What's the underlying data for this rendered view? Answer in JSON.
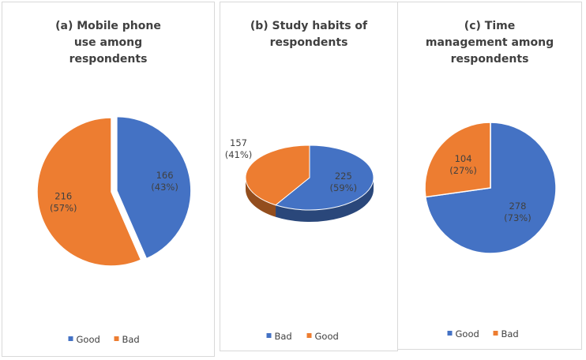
{
  "chart_data": [
    {
      "type": "pie",
      "title": "(a) Mobile phone use among respondents",
      "slices": [
        {
          "name": "Good",
          "value": 166,
          "label_value": "166",
          "label_pct": "(43%)",
          "color": "#4472C4"
        },
        {
          "name": "Bad",
          "value": 216,
          "label_value": "216",
          "label_pct": "(57%)",
          "color": "#ED7D31"
        }
      ],
      "legend": [
        "Good",
        "Bad"
      ],
      "legend_position": "bottom",
      "exploded": true
    },
    {
      "type": "pie",
      "title": "(b) Study habits of respondents",
      "slices": [
        {
          "name": "Bad",
          "value": 225,
          "label_value": "225",
          "label_pct": "(59%)",
          "color": "#4472C4"
        },
        {
          "name": "Good",
          "value": 157,
          "label_value": "157",
          "label_pct": "(41%)",
          "color": "#ED7D31"
        }
      ],
      "legend": [
        "Bad",
        "Good"
      ],
      "legend_position": "bottom",
      "style_3d": true
    },
    {
      "type": "pie",
      "title": "(c) Time management among respondents",
      "slices": [
        {
          "name": "Good",
          "value": 278,
          "label_value": "278",
          "label_pct": "(73%)",
          "color": "#4472C4"
        },
        {
          "name": "Bad",
          "value": 104,
          "label_value": "104",
          "label_pct": "(27%)",
          "color": "#ED7D31"
        }
      ],
      "legend": [
        "Good",
        "Bad"
      ],
      "legend_position": "bottom"
    }
  ]
}
